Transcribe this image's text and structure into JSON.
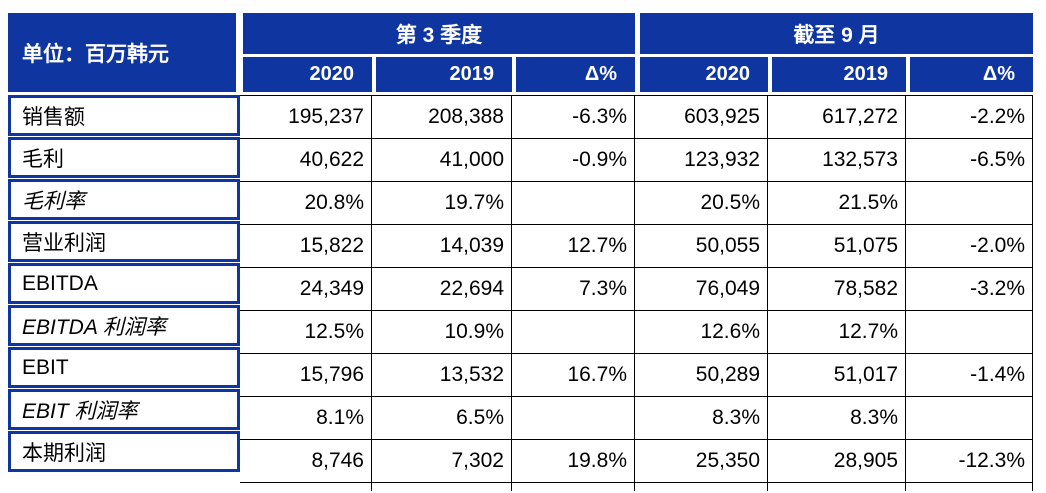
{
  "colors": {
    "header_blue": "#0F35A0",
    "grid_line": "#000000",
    "text": "#000000",
    "header_text": "#FFFFFF",
    "page_bg": "#FFFFFF"
  },
  "header": {
    "unit_label": "单位：百万韩元",
    "groups": [
      {
        "label": "第 3 季度",
        "columns": [
          "2020",
          "2019",
          "Δ%"
        ]
      },
      {
        "label": "截至 9 月",
        "columns": [
          "2020",
          "2019",
          "Δ%"
        ]
      }
    ]
  },
  "table": {
    "rows": [
      {
        "label": "销售额",
        "italic": false,
        "values": [
          "195,237",
          "208,388",
          "-6.3%",
          "603,925",
          "617,272",
          "-2.2%"
        ]
      },
      {
        "label": "毛利",
        "italic": false,
        "values": [
          "40,622",
          "41,000",
          "-0.9%",
          "123,932",
          "132,573",
          "-6.5%"
        ]
      },
      {
        "label": "毛利率",
        "italic": true,
        "values": [
          "20.8%",
          "19.7%",
          "",
          "20.5%",
          "21.5%",
          ""
        ]
      },
      {
        "label": "营业利润",
        "italic": false,
        "values": [
          "15,822",
          "14,039",
          "12.7%",
          "50,055",
          "51,075",
          "-2.0%"
        ]
      },
      {
        "label": "EBITDA",
        "italic": false,
        "values": [
          "24,349",
          "22,694",
          "7.3%",
          "76,049",
          "78,582",
          "-3.2%"
        ]
      },
      {
        "label": "EBITDA 利润率",
        "italic": true,
        "values": [
          "12.5%",
          "10.9%",
          "",
          "12.6%",
          "12.7%",
          ""
        ]
      },
      {
        "label": "EBIT",
        "italic": false,
        "values": [
          "15,796",
          "13,532",
          "16.7%",
          "50,289",
          "51,017",
          "-1.4%"
        ]
      },
      {
        "label": "EBIT 利润率",
        "italic": true,
        "values": [
          "8.1%",
          "6.5%",
          "",
          "8.3%",
          "8.3%",
          ""
        ]
      },
      {
        "label": "本期利润",
        "italic": false,
        "values": [
          "8,746",
          "7,302",
          "19.8%",
          "25,350",
          "28,905",
          "-12.3%"
        ]
      }
    ]
  }
}
